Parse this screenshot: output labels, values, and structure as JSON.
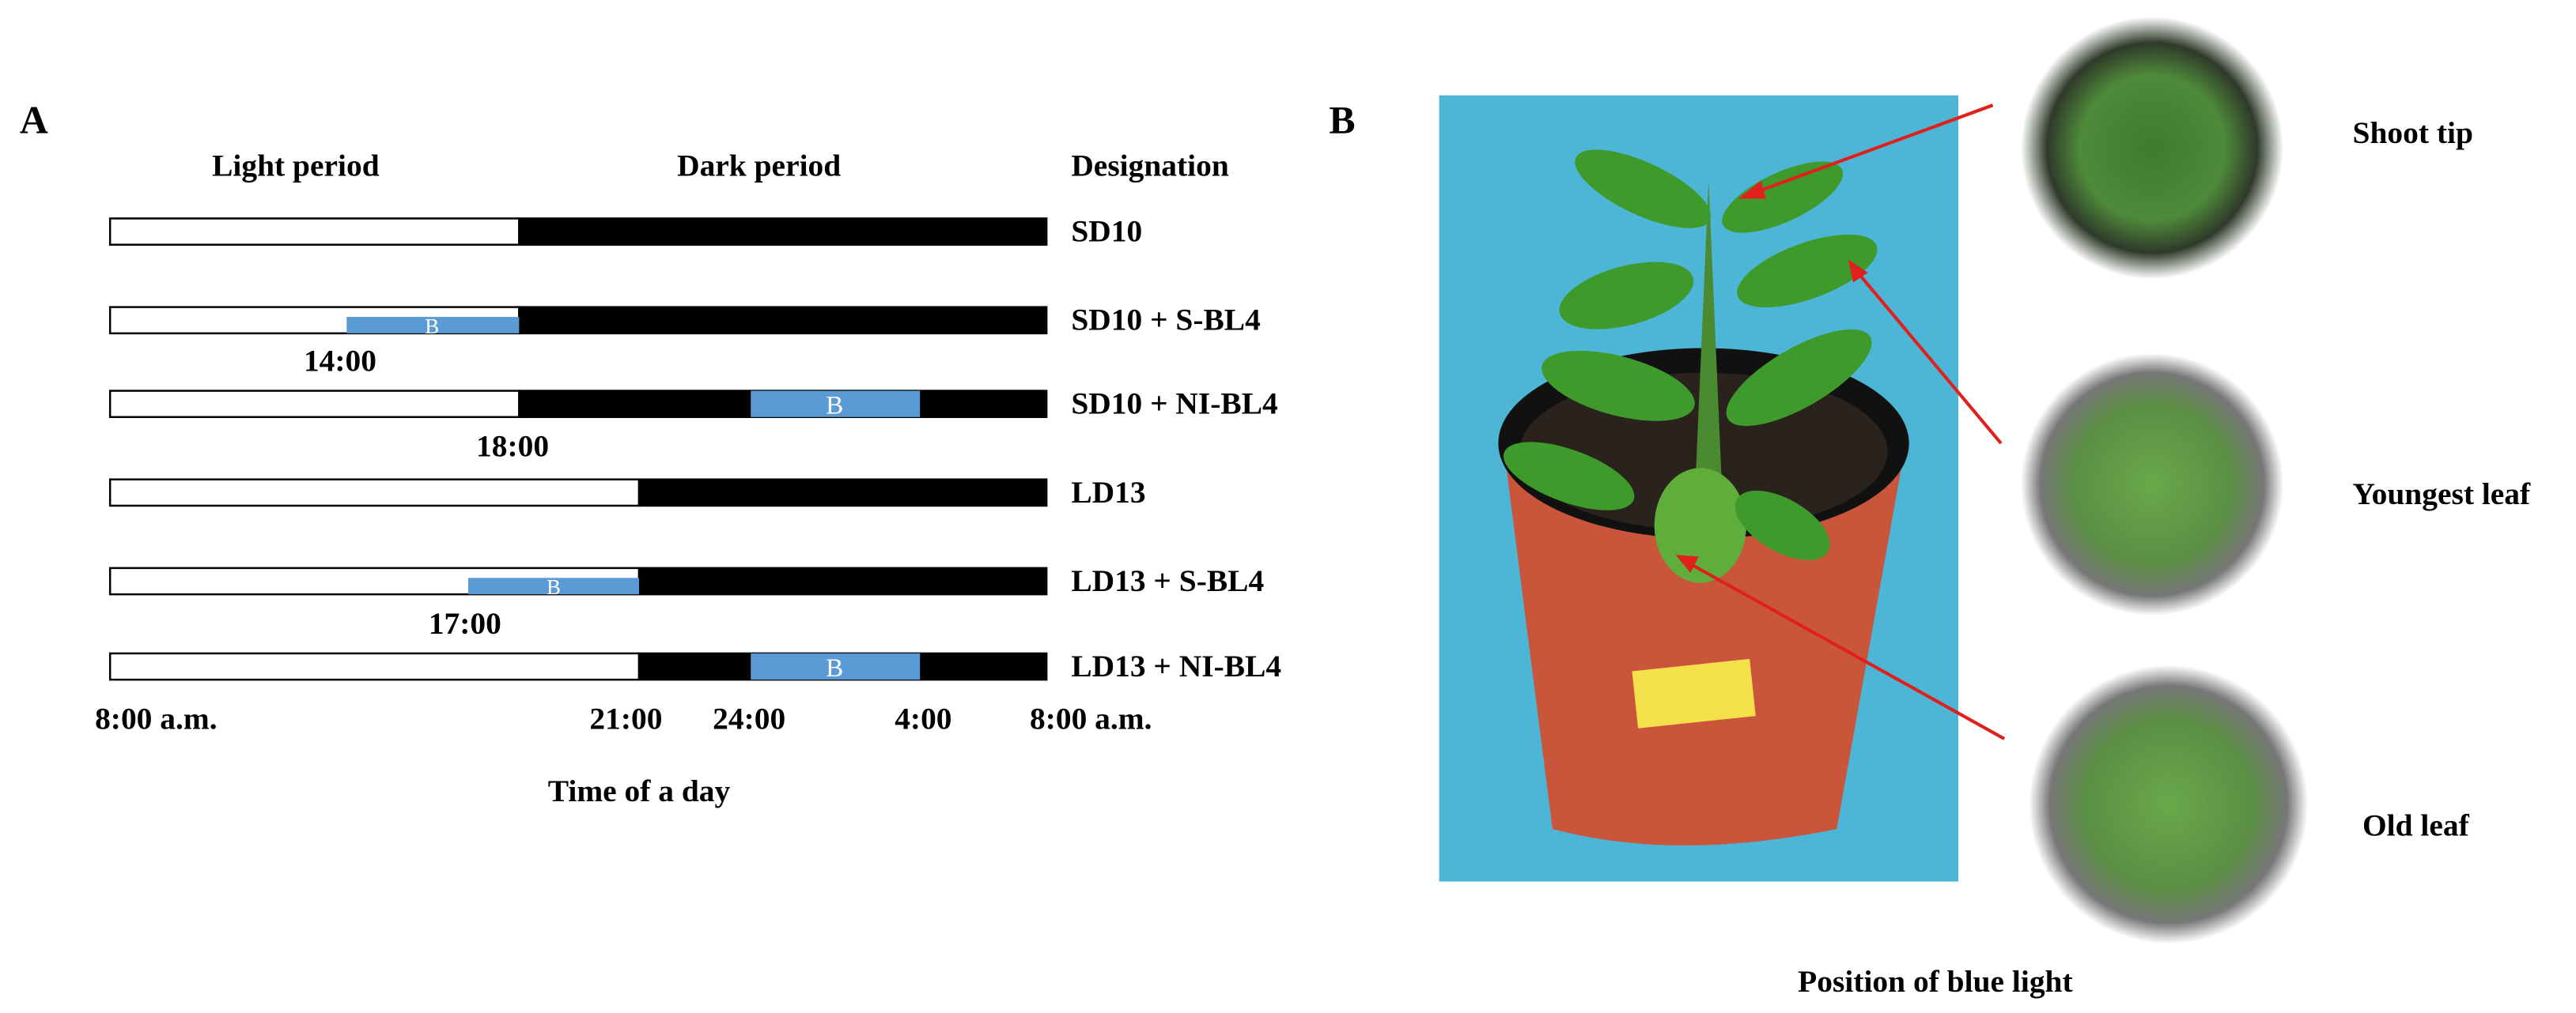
{
  "panel_a": {
    "label": "A",
    "headers": {
      "light": "Light period",
      "dark": "Dark period",
      "designation": "Designation"
    },
    "rows": [
      {
        "designation": "SD10"
      },
      {
        "designation": "SD10 + S-BL4",
        "blue_label": "B",
        "time_label": "14:00"
      },
      {
        "designation": "SD10 + NI-BL4",
        "blue_label": "B",
        "time_label": "18:00"
      },
      {
        "designation": "LD13"
      },
      {
        "designation": "LD13 + S-BL4",
        "blue_label": "B",
        "time_label": "17:00"
      },
      {
        "designation": "LD13 + NI-BL4",
        "blue_label": "B"
      }
    ],
    "time_axis": [
      "8:00 a.m.",
      "21:00",
      "24:00",
      "4:00",
      "8:00 a.m."
    ],
    "axis_title": "Time of a day"
  },
  "panel_b": {
    "label": "B",
    "positions": [
      "Shoot tip",
      "Youngest leaf",
      "Old leaf"
    ],
    "caption": "Position of blue light"
  }
}
